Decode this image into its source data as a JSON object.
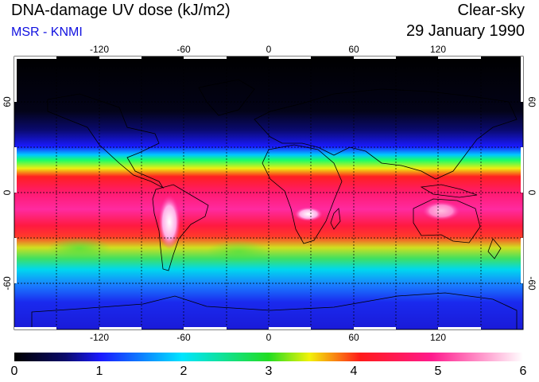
{
  "header": {
    "title": "DNA-damage UV dose (kJ/m2)",
    "source": "MSR - KNMI",
    "condition": "Clear-sky",
    "date": "29 January 1990"
  },
  "map": {
    "lon_ticks": [
      "-120",
      "-60",
      "0",
      "60",
      "120"
    ],
    "lat_ticks": [
      "60",
      "0",
      "-60"
    ],
    "lon_range": [
      -180,
      180
    ],
    "lat_range": [
      -90,
      90
    ],
    "gridlines": "dashed every 30 degrees"
  },
  "colorbar": {
    "labels": [
      "0",
      "1",
      "2",
      "3",
      "4",
      "5",
      "6"
    ],
    "range": [
      0,
      6
    ],
    "colors": [
      "#000000",
      "#0a0a5a",
      "#1a1aff",
      "#00e5ff",
      "#22dd22",
      "#f2f20a",
      "#ff1a1a",
      "#ff1a8c",
      "#ffffff"
    ]
  }
}
